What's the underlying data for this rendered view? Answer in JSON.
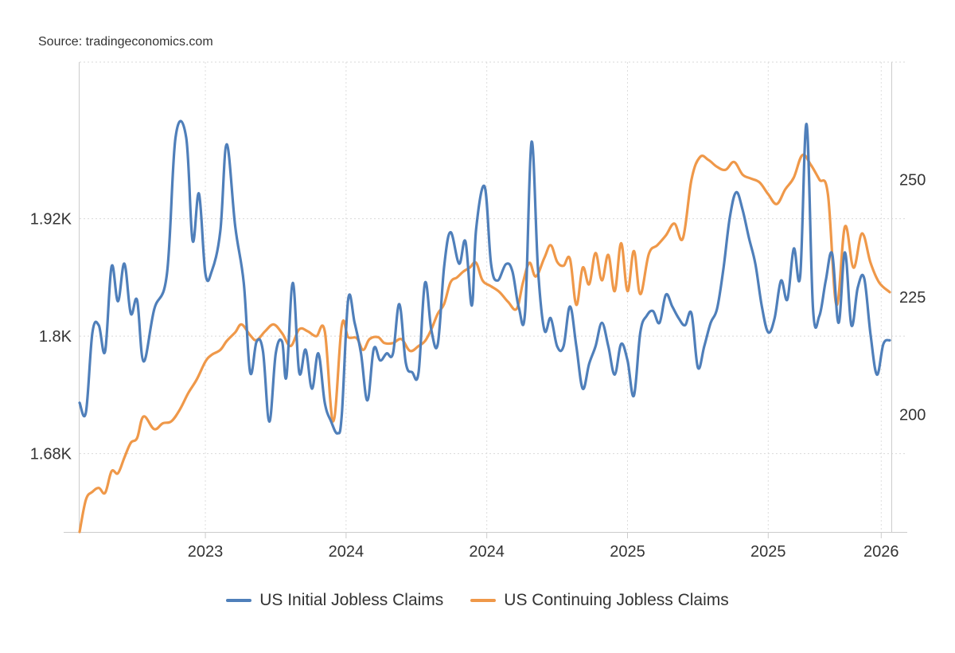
{
  "source_text": "Source: tradingeconomics.com",
  "chart_data": {
    "type": "line",
    "x_tick_labels": [
      "2023",
      "2024",
      "2024",
      "2025",
      "2025",
      "2026"
    ],
    "x_tick_dates": [
      2022.96,
      2023.62,
      2024.28,
      2024.94,
      2025.6,
      2026.13
    ],
    "x_range": [
      2022.37,
      2026.17
    ],
    "left_axis": {
      "ylim": [
        1.6,
        2.08
      ],
      "ticks": [
        1.68,
        1.8,
        1.92
      ],
      "tick_labels": [
        "1.68K",
        "1.8K",
        "1.92K"
      ],
      "unit": "K (continuing claims, millions)"
    },
    "right_axis": {
      "ylim": [
        175,
        275
      ],
      "ticks": [
        200,
        225,
        250
      ],
      "tick_labels": [
        "200",
        "225",
        "250"
      ],
      "unit": "K (initial claims)"
    },
    "grid": true,
    "legend_position": "bottom-center",
    "series": [
      {
        "name": "US Initial Jobless Claims",
        "axis": "right",
        "color": "#4f7fba",
        "points": [
          [
            2022.37,
            202.5
          ],
          [
            2022.4,
            200.5
          ],
          [
            2022.43,
            217.4
          ],
          [
            2022.46,
            219.0
          ],
          [
            2022.49,
            213.5
          ],
          [
            2022.52,
            231.5
          ],
          [
            2022.55,
            224.1
          ],
          [
            2022.58,
            232.1
          ],
          [
            2022.61,
            221.5
          ],
          [
            2022.64,
            224.3
          ],
          [
            2022.67,
            211.3
          ],
          [
            2022.72,
            222.4
          ],
          [
            2022.78,
            230.0
          ],
          [
            2022.82,
            259.0
          ],
          [
            2022.87,
            259.0
          ],
          [
            2022.9,
            237.0
          ],
          [
            2022.93,
            247.0
          ],
          [
            2022.96,
            230.0
          ],
          [
            2022.99,
            230.5
          ],
          [
            2023.03,
            239.0
          ],
          [
            2023.06,
            257.5
          ],
          [
            2023.1,
            240.0
          ],
          [
            2023.14,
            228.0
          ],
          [
            2023.17,
            209.0
          ],
          [
            2023.2,
            215.5
          ],
          [
            2023.23,
            213.5
          ],
          [
            2023.26,
            198.5
          ],
          [
            2023.29,
            213.0
          ],
          [
            2023.32,
            215.5
          ],
          [
            2023.34,
            208.0
          ],
          [
            2023.37,
            228.0
          ],
          [
            2023.4,
            209.0
          ],
          [
            2023.43,
            213.8
          ],
          [
            2023.46,
            205.5
          ],
          [
            2023.49,
            213.0
          ],
          [
            2023.52,
            202.5
          ],
          [
            2023.55,
            198.5
          ],
          [
            2023.58,
            196.0
          ],
          [
            2023.6,
            200.0
          ],
          [
            2023.63,
            224.5
          ],
          [
            2023.66,
            219.5
          ],
          [
            2023.69,
            213.0
          ],
          [
            2023.72,
            203.0
          ],
          [
            2023.75,
            214.0
          ],
          [
            2023.78,
            211.5
          ],
          [
            2023.81,
            213.0
          ],
          [
            2023.84,
            213.0
          ],
          [
            2023.87,
            223.5
          ],
          [
            2023.9,
            211.0
          ],
          [
            2023.93,
            209.0
          ],
          [
            2023.96,
            209.0
          ],
          [
            2023.99,
            228.0
          ],
          [
            2024.02,
            218.0
          ],
          [
            2024.05,
            215.0
          ],
          [
            2024.08,
            231.5
          ],
          [
            2024.11,
            238.8
          ],
          [
            2024.15,
            232.1
          ],
          [
            2024.18,
            236.8
          ],
          [
            2024.21,
            223.2
          ],
          [
            2024.23,
            239.5
          ],
          [
            2024.27,
            248.5
          ],
          [
            2024.3,
            232.1
          ],
          [
            2024.33,
            228.5
          ],
          [
            2024.37,
            232.0
          ],
          [
            2024.4,
            230.5
          ],
          [
            2024.43,
            222.8
          ],
          [
            2024.46,
            222.0
          ],
          [
            2024.49,
            258.0
          ],
          [
            2024.52,
            231.0
          ],
          [
            2024.55,
            218.0
          ],
          [
            2024.58,
            220.5
          ],
          [
            2024.61,
            214.5
          ],
          [
            2024.64,
            214.5
          ],
          [
            2024.67,
            223.0
          ],
          [
            2024.7,
            214.5
          ],
          [
            2024.73,
            205.5
          ],
          [
            2024.76,
            210.8
          ],
          [
            2024.79,
            214.5
          ],
          [
            2024.82,
            219.5
          ],
          [
            2024.85,
            214.5
          ],
          [
            2024.88,
            208.5
          ],
          [
            2024.91,
            215.0
          ],
          [
            2024.94,
            211.5
          ],
          [
            2024.97,
            204.0
          ],
          [
            2025.0,
            217.5
          ],
          [
            2025.03,
            221.0
          ],
          [
            2025.06,
            222.0
          ],
          [
            2025.09,
            219.5
          ],
          [
            2025.12,
            225.5
          ],
          [
            2025.15,
            223.0
          ],
          [
            2025.18,
            220.5
          ],
          [
            2025.21,
            219.0
          ],
          [
            2025.24,
            221.5
          ],
          [
            2025.27,
            210.0
          ],
          [
            2025.3,
            214.5
          ],
          [
            2025.33,
            219.5
          ],
          [
            2025.36,
            222.5
          ],
          [
            2025.39,
            231.0
          ],
          [
            2025.42,
            242.0
          ],
          [
            2025.45,
            247.3
          ],
          [
            2025.48,
            243.5
          ],
          [
            2025.51,
            237.5
          ],
          [
            2025.54,
            232.0
          ],
          [
            2025.57,
            223.0
          ],
          [
            2025.6,
            217.5
          ],
          [
            2025.63,
            220.5
          ],
          [
            2025.66,
            228.5
          ],
          [
            2025.69,
            224.5
          ],
          [
            2025.72,
            235.3
          ],
          [
            2025.75,
            229.5
          ],
          [
            2025.78,
            261.8
          ],
          [
            2025.81,
            222.5
          ],
          [
            2025.84,
            221.0
          ],
          [
            2025.87,
            228.5
          ],
          [
            2025.9,
            234.2
          ],
          [
            2025.93,
            219.5
          ],
          [
            2025.96,
            234.5
          ],
          [
            2025.99,
            219.0
          ],
          [
            2026.02,
            227.0
          ],
          [
            2026.05,
            229.0
          ],
          [
            2026.08,
            217.0
          ],
          [
            2026.11,
            208.5
          ],
          [
            2026.14,
            215.0
          ],
          [
            2026.17,
            215.8
          ]
        ]
      },
      {
        "name": "US Continuing Jobless Claims",
        "axis": "left",
        "color": "#ef9849",
        "points": [
          [
            2022.37,
            1.6
          ],
          [
            2022.4,
            1.633
          ],
          [
            2022.43,
            1.641
          ],
          [
            2022.46,
            1.645
          ],
          [
            2022.49,
            1.64
          ],
          [
            2022.52,
            1.662
          ],
          [
            2022.55,
            1.66
          ],
          [
            2022.58,
            1.676
          ],
          [
            2022.61,
            1.691
          ],
          [
            2022.64,
            1.696
          ],
          [
            2022.67,
            1.718
          ],
          [
            2022.72,
            1.705
          ],
          [
            2022.76,
            1.711
          ],
          [
            2022.8,
            1.713
          ],
          [
            2022.84,
            1.725
          ],
          [
            2022.88,
            1.742
          ],
          [
            2022.92,
            1.756
          ],
          [
            2022.96,
            1.774
          ],
          [
            2022.99,
            1.781
          ],
          [
            2023.03,
            1.786
          ],
          [
            2023.06,
            1.795
          ],
          [
            2023.1,
            1.804
          ],
          [
            2023.13,
            1.812
          ],
          [
            2023.17,
            1.801
          ],
          [
            2023.2,
            1.796
          ],
          [
            2023.24,
            1.805
          ],
          [
            2023.28,
            1.812
          ],
          [
            2023.32,
            1.803
          ],
          [
            2023.36,
            1.79
          ],
          [
            2023.4,
            1.807
          ],
          [
            2023.44,
            1.805
          ],
          [
            2023.48,
            1.8
          ],
          [
            2023.52,
            1.805
          ],
          [
            2023.56,
            1.713
          ],
          [
            2023.6,
            1.811
          ],
          [
            2023.63,
            1.799
          ],
          [
            2023.67,
            1.798
          ],
          [
            2023.7,
            1.786
          ],
          [
            2023.73,
            1.797
          ],
          [
            2023.77,
            1.799
          ],
          [
            2023.8,
            1.793
          ],
          [
            2023.84,
            1.793
          ],
          [
            2023.88,
            1.797
          ],
          [
            2023.92,
            1.785
          ],
          [
            2023.96,
            1.79
          ],
          [
            2023.99,
            1.795
          ],
          [
            2024.02,
            1.807
          ],
          [
            2024.05,
            1.823
          ],
          [
            2024.08,
            1.833
          ],
          [
            2024.11,
            1.855
          ],
          [
            2024.14,
            1.86
          ],
          [
            2024.17,
            1.866
          ],
          [
            2024.2,
            1.87
          ],
          [
            2024.23,
            1.875
          ],
          [
            2024.26,
            1.857
          ],
          [
            2024.3,
            1.851
          ],
          [
            2024.34,
            1.845
          ],
          [
            2024.38,
            1.835
          ],
          [
            2024.42,
            1.828
          ],
          [
            2024.45,
            1.855
          ],
          [
            2024.48,
            1.875
          ],
          [
            2024.51,
            1.861
          ],
          [
            2024.55,
            1.88
          ],
          [
            2024.58,
            1.893
          ],
          [
            2024.61,
            1.876
          ],
          [
            2024.64,
            1.872
          ],
          [
            2024.67,
            1.879
          ],
          [
            2024.7,
            1.832
          ],
          [
            2024.73,
            1.87
          ],
          [
            2024.76,
            1.853
          ],
          [
            2024.79,
            1.885
          ],
          [
            2024.82,
            1.857
          ],
          [
            2024.85,
            1.883
          ],
          [
            2024.88,
            1.846
          ],
          [
            2024.91,
            1.895
          ],
          [
            2024.94,
            1.846
          ],
          [
            2024.97,
            1.887
          ],
          [
            2025.0,
            1.843
          ],
          [
            2025.04,
            1.884
          ],
          [
            2025.08,
            1.893
          ],
          [
            2025.12,
            1.903
          ],
          [
            2025.16,
            1.915
          ],
          [
            2025.2,
            1.9
          ],
          [
            2025.24,
            1.96
          ],
          [
            2025.28,
            1.983
          ],
          [
            2025.32,
            1.98
          ],
          [
            2025.36,
            1.973
          ],
          [
            2025.4,
            1.97
          ],
          [
            2025.44,
            1.978
          ],
          [
            2025.48,
            1.965
          ],
          [
            2025.52,
            1.961
          ],
          [
            2025.56,
            1.957
          ],
          [
            2025.6,
            1.945
          ],
          [
            2025.64,
            1.935
          ],
          [
            2025.68,
            1.95
          ],
          [
            2025.72,
            1.962
          ],
          [
            2025.76,
            1.985
          ],
          [
            2025.8,
            1.975
          ],
          [
            2025.84,
            1.96
          ],
          [
            2025.88,
            1.945
          ],
          [
            2025.92,
            1.832
          ],
          [
            2025.96,
            1.912
          ],
          [
            2026.0,
            1.87
          ],
          [
            2026.04,
            1.905
          ],
          [
            2026.08,
            1.875
          ],
          [
            2026.12,
            1.855
          ],
          [
            2026.17,
            1.845
          ]
        ]
      }
    ]
  },
  "legend": [
    {
      "label": "US Initial Jobless Claims",
      "color": "#4f7fba"
    },
    {
      "label": "US Continuing Jobless Claims",
      "color": "#ef9849"
    }
  ]
}
